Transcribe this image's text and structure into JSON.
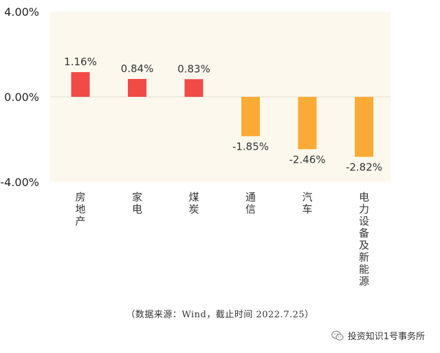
{
  "chart_data": {
    "type": "bar",
    "categories": [
      "房地产",
      "家电",
      "煤炭",
      "通信",
      "汽车",
      "电力设备及新能源"
    ],
    "values": [
      1.16,
      0.84,
      0.83,
      -1.85,
      -2.46,
      -2.82
    ],
    "data_labels": [
      "1.16%",
      "0.84%",
      "0.83%",
      "-1.85%",
      "-2.46%",
      "-2.82%"
    ],
    "y_ticks": [
      "4.00%",
      "0.00%",
      "-4.00%"
    ],
    "y_tick_values": [
      4,
      0,
      -4
    ],
    "ylim": [
      -4,
      4
    ],
    "grid": false,
    "plot_background": "#fcf8ee",
    "positive_color": "#f24a45",
    "negative_color": "#fbab35"
  },
  "footer": {
    "source_note": "（数据来源：Wind，截止时间 2022.7.25）",
    "watermark_text": "投资知识1号事务所",
    "watermark_icon": "wechat-icon"
  }
}
